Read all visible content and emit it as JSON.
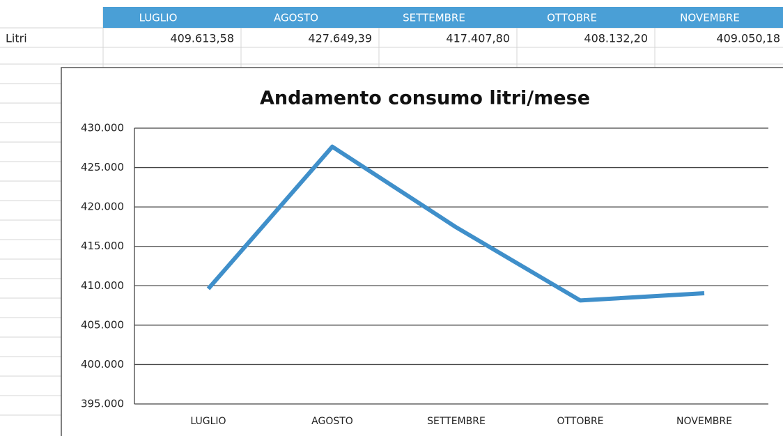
{
  "table": {
    "header": [
      "LUGLIO",
      "AGOSTO",
      "SETTEMBRE",
      "OTTOBRE",
      "NOVEMBRE"
    ],
    "rows": [
      [
        "Litri",
        "409.613,58",
        "427.649,39",
        "417.407,80",
        "408.132,20",
        "409.050,18"
      ]
    ]
  },
  "chart_data": {
    "type": "line",
    "title": "Andamento consumo litri/mese",
    "categories": [
      "LUGLIO",
      "AGOSTO",
      "SETTEMBRE",
      "OTTOBRE",
      "NOVEMBRE"
    ],
    "values": [
      409613.58,
      427649.39,
      417407.8,
      408132.2,
      409050.18
    ],
    "color": "#3f8fca",
    "ylim": [
      395000,
      430000
    ],
    "yticks": [
      {
        "value": 395000,
        "label": "395.000"
      },
      {
        "value": 400000,
        "label": "400.000"
      },
      {
        "value": 405000,
        "label": "405.000"
      },
      {
        "value": 410000,
        "label": "410.000"
      },
      {
        "value": 415000,
        "label": "415.000"
      },
      {
        "value": 420000,
        "label": "420.000"
      },
      {
        "value": 425000,
        "label": "425.000"
      },
      {
        "value": 430000,
        "label": "430.000"
      }
    ],
    "grid": true
  }
}
